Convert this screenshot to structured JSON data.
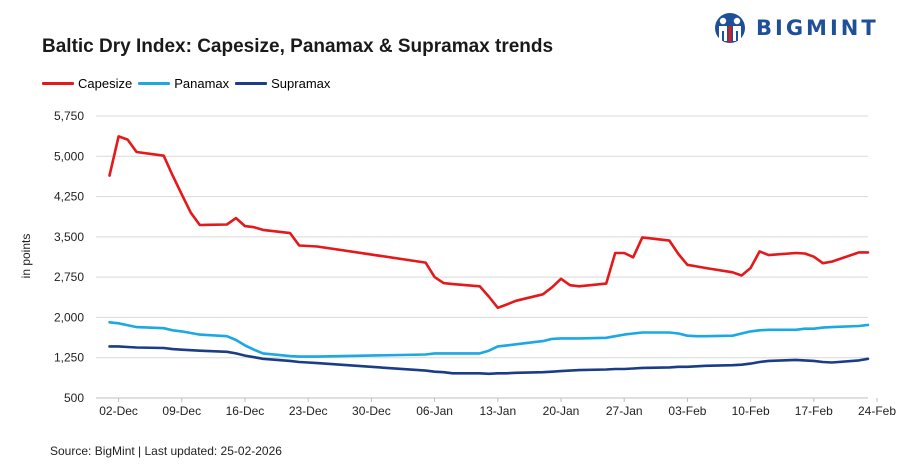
{
  "header": {
    "title": "Baltic Dry Index: Capesize, Panamax & Supramax trends",
    "brand": "BIGMINT"
  },
  "footer": {
    "source": "Source: BigMint | Last updated: 25-02-2026"
  },
  "chart_data": {
    "type": "line",
    "title": "Baltic Dry Index: Capesize, Panamax & Supramax trends",
    "xlabel": "",
    "ylabel": "in points",
    "ylim": [
      500,
      5750
    ],
    "yticks": [
      500,
      1250,
      2000,
      2750,
      3500,
      4250,
      5000,
      5750
    ],
    "ytick_labels": [
      "500",
      "1,250",
      "2,000",
      "2,750",
      "3,500",
      "4,250",
      "5,000",
      "5,750"
    ],
    "grid": true,
    "legend": "top-left",
    "x_tick_labels": [
      "02-Dec",
      "09-Dec",
      "16-Dec",
      "23-Dec",
      "30-Dec",
      "06-Jan",
      "13-Jan",
      "20-Jan",
      "27-Jan",
      "03-Feb",
      "10-Feb",
      "17-Feb",
      "24-Feb"
    ],
    "x_range_days": [
      -1.5,
      84
    ],
    "series": [
      {
        "name": "Capesize",
        "color": "#e3191b",
        "days": [
          0,
          1,
          2,
          3,
          6,
          7,
          8,
          9,
          10,
          11,
          13,
          14,
          15,
          16,
          17,
          20,
          21,
          22,
          23,
          35,
          36,
          37,
          38,
          41,
          42,
          43,
          44,
          45,
          48,
          49,
          50,
          51,
          52,
          55,
          56,
          57,
          58,
          59,
          62,
          63,
          64,
          65,
          66,
          69,
          70,
          71,
          72,
          73,
          76,
          77,
          78,
          79,
          80,
          83,
          84
        ],
        "values": [
          4640,
          5370,
          5310,
          5080,
          5010,
          4640,
          4290,
          3950,
          3720,
          3725,
          3730,
          3850,
          3700,
          3680,
          3630,
          3570,
          3340,
          3330,
          3320,
          3020,
          2750,
          2640,
          2620,
          2580,
          2390,
          2180,
          2240,
          2310,
          2430,
          2560,
          2720,
          2600,
          2580,
          2630,
          3200,
          3200,
          3120,
          3490,
          3430,
          3180,
          2980,
          2950,
          2920,
          2840,
          2780,
          2920,
          3230,
          3160,
          3200,
          3190,
          3130,
          3010,
          3040,
          3210,
          3210
        ]
      },
      {
        "name": "Panamax",
        "color": "#1ca8e3",
        "days": [
          0,
          1,
          3,
          6,
          7,
          8,
          10,
          13,
          14,
          15,
          16,
          17,
          20,
          21,
          22,
          23,
          35,
          36,
          37,
          38,
          41,
          42,
          43,
          44,
          45,
          48,
          49,
          50,
          51,
          52,
          55,
          56,
          57,
          58,
          59,
          62,
          63,
          64,
          65,
          66,
          69,
          70,
          71,
          72,
          73,
          76,
          77,
          78,
          79,
          80,
          83,
          84
        ],
        "values": [
          1910,
          1890,
          1820,
          1800,
          1760,
          1740,
          1680,
          1650,
          1580,
          1480,
          1400,
          1330,
          1280,
          1270,
          1270,
          1270,
          1310,
          1330,
          1330,
          1330,
          1330,
          1380,
          1460,
          1480,
          1500,
          1560,
          1600,
          1610,
          1610,
          1610,
          1620,
          1650,
          1680,
          1700,
          1720,
          1720,
          1700,
          1660,
          1650,
          1650,
          1660,
          1700,
          1740,
          1760,
          1770,
          1770,
          1790,
          1790,
          1810,
          1820,
          1840,
          1860
        ]
      },
      {
        "name": "Supramax",
        "color": "#1b3d87",
        "days": [
          0,
          1,
          2,
          3,
          6,
          7,
          8,
          9,
          10,
          13,
          14,
          15,
          16,
          17,
          20,
          21,
          22,
          23,
          35,
          36,
          37,
          38,
          41,
          42,
          43,
          44,
          45,
          48,
          49,
          50,
          51,
          52,
          55,
          56,
          57,
          58,
          59,
          62,
          63,
          64,
          65,
          66,
          69,
          70,
          71,
          72,
          73,
          76,
          77,
          78,
          79,
          80,
          83,
          84
        ],
        "values": [
          1460,
          1460,
          1450,
          1440,
          1430,
          1410,
          1400,
          1390,
          1380,
          1360,
          1330,
          1290,
          1260,
          1230,
          1190,
          1170,
          1160,
          1150,
          1010,
          990,
          980,
          960,
          960,
          950,
          960,
          960,
          970,
          980,
          990,
          1000,
          1010,
          1020,
          1030,
          1040,
          1040,
          1050,
          1060,
          1070,
          1080,
          1080,
          1090,
          1100,
          1110,
          1120,
          1140,
          1170,
          1190,
          1210,
          1200,
          1190,
          1170,
          1160,
          1200,
          1230
        ]
      }
    ]
  }
}
